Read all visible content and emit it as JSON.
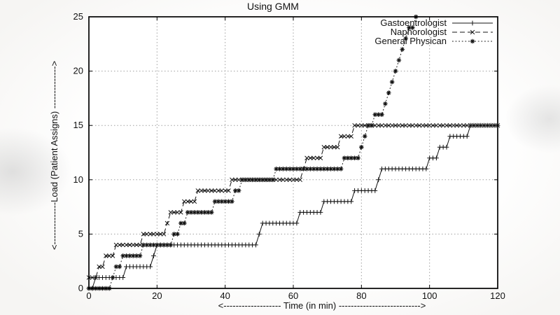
{
  "page": {
    "background_color": "#f3f2f0",
    "plot_background_color": "#ffffff"
  },
  "chart_data": {
    "type": "line",
    "title": "Using GMM",
    "xlabel": "<------------------- Time (in min)  --------------------------->",
    "ylabel": "<--------------Load (Patient Assigns) -------------->",
    "xlim": [
      0,
      120
    ],
    "ylim": [
      0,
      25
    ],
    "x_ticks": [
      0,
      20,
      40,
      60,
      80,
      100,
      120
    ],
    "y_ticks": [
      0,
      5,
      10,
      15,
      20,
      25
    ],
    "grid": true,
    "legend_position": "top-right-inside",
    "sample_interval_min": 1,
    "colors": {
      "series": "#141414",
      "grid": "#a0a0a0",
      "border": "#000000",
      "text": "#111111"
    },
    "series": [
      {
        "name": "Gastoentrologist",
        "marker": "plus",
        "line_style": "solid",
        "t_end": 120,
        "steps": [
          [
            0,
            0
          ],
          [
            2,
            1
          ],
          [
            11,
            2
          ],
          [
            19,
            3
          ],
          [
            20,
            4
          ],
          [
            50,
            5
          ],
          [
            51,
            6
          ],
          [
            62,
            7
          ],
          [
            69,
            8
          ],
          [
            78,
            9
          ],
          [
            85,
            10
          ],
          [
            86,
            11
          ],
          [
            100,
            12
          ],
          [
            103,
            13
          ],
          [
            106,
            14
          ],
          [
            112,
            15
          ]
        ]
      },
      {
        "name": "Naphorologist",
        "marker": "cross",
        "line_style": "dashed",
        "t_end": 120,
        "steps": [
          [
            0,
            1
          ],
          [
            3,
            2
          ],
          [
            5,
            3
          ],
          [
            8,
            4
          ],
          [
            16,
            5
          ],
          [
            23,
            6
          ],
          [
            24,
            7
          ],
          [
            28,
            8
          ],
          [
            32,
            9
          ],
          [
            42,
            10
          ],
          [
            63,
            11
          ],
          [
            64,
            12
          ],
          [
            69,
            13
          ],
          [
            74,
            14
          ],
          [
            78,
            15
          ]
        ]
      },
      {
        "name": "General Physican",
        "marker": "asterisk",
        "line_style": "dotted",
        "t_end": 96,
        "steps": [
          [
            0,
            0
          ],
          [
            7,
            1
          ],
          [
            8,
            2
          ],
          [
            10,
            3
          ],
          [
            16,
            4
          ],
          [
            25,
            5
          ],
          [
            27,
            6
          ],
          [
            29,
            7
          ],
          [
            37,
            8
          ],
          [
            43,
            9
          ],
          [
            45,
            10
          ],
          [
            55,
            11
          ],
          [
            75,
            12
          ],
          [
            80,
            13
          ],
          [
            81,
            14
          ],
          [
            82,
            15
          ],
          [
            84,
            16
          ],
          [
            87,
            17
          ],
          [
            88,
            18
          ],
          [
            89,
            19
          ],
          [
            90,
            20
          ],
          [
            91,
            21
          ],
          [
            92,
            22
          ],
          [
            93,
            23
          ],
          [
            94,
            24
          ],
          [
            96,
            25
          ]
        ]
      }
    ]
  }
}
